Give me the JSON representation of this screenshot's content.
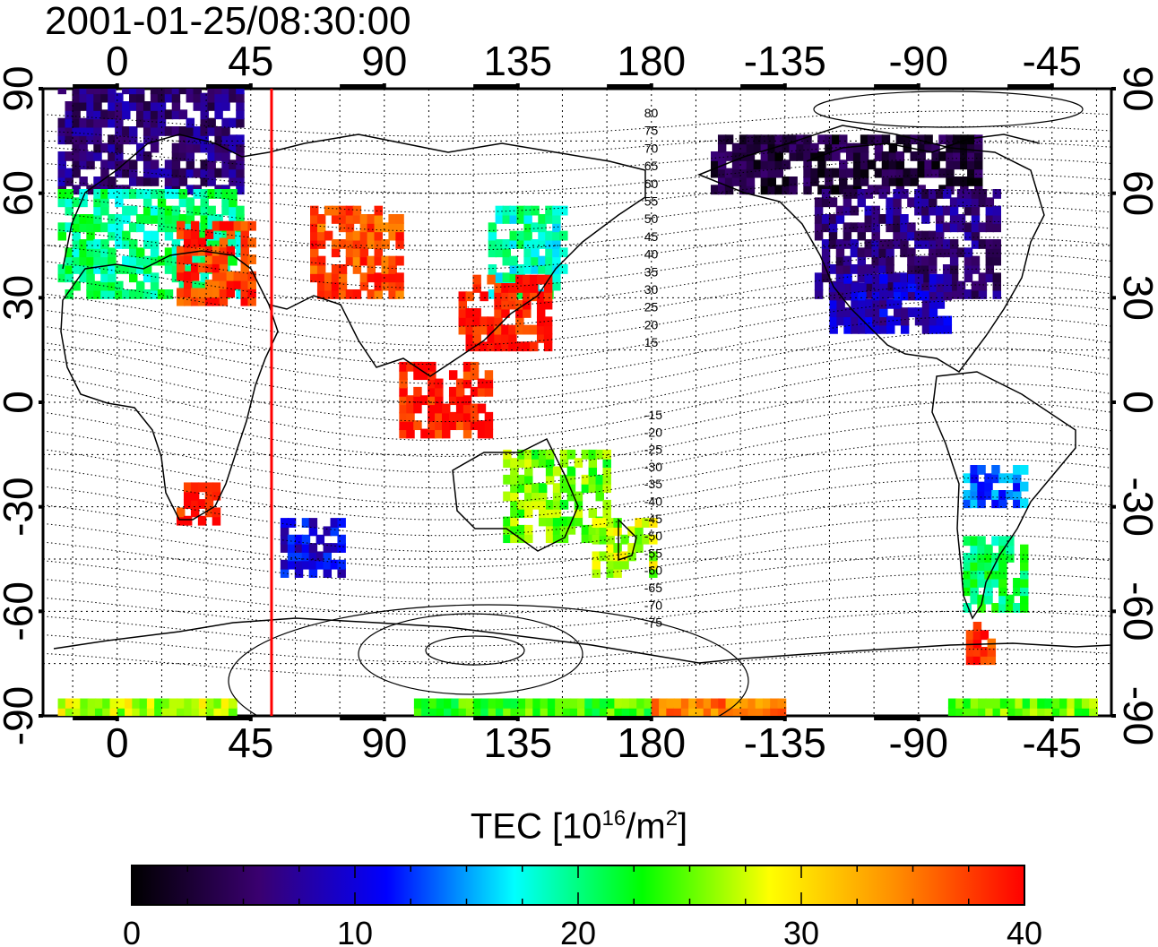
{
  "title": "2001-01-25/08:30:00",
  "top_lon_ticks": [
    "0",
    "45",
    "90",
    "135",
    "180",
    "-135",
    "-90",
    "-45"
  ],
  "bottom_lon_ticks": [
    "0",
    "45",
    "90",
    "135",
    "180",
    "-135",
    "-90",
    "-45"
  ],
  "left_lat_ticks": [
    "90",
    "60",
    "30",
    "0",
    "-30",
    "-60",
    "-90"
  ],
  "right_lat_ticks": [
    "90",
    "60",
    "30",
    "0",
    "-30",
    "-60",
    "-90"
  ],
  "mlat_labels": {
    "north": [
      "80",
      "75",
      "70",
      "65",
      "60",
      "55",
      "50",
      "45",
      "40",
      "35",
      "30",
      "25",
      "20",
      "15"
    ],
    "south": [
      "-15",
      "-20",
      "-25",
      "-30",
      "-35",
      "-40",
      "-45",
      "-50",
      "-55",
      "-60",
      "-65",
      "-70",
      "-75"
    ]
  },
  "colorbar": {
    "title_prefix": "TEC  [10",
    "title_exp1": "16",
    "title_mid": "/m",
    "title_exp2": "2",
    "title_suffix": "]",
    "min": 0,
    "max": 40,
    "tick_labels": [
      "0",
      "10",
      "20",
      "30",
      "40"
    ],
    "colors": [
      "#000000",
      "#3a0070",
      "#0000ff",
      "#00ffff",
      "#00ff00",
      "#ffff00",
      "#ff8c00",
      "#ff0000"
    ]
  },
  "chart_data": {
    "type": "heatmap",
    "title": "2001-01-25/08:30:00",
    "variable": "TEC [10^16/m^2]",
    "x_range": [
      -25,
      335
    ],
    "y_range": [
      -90,
      90
    ],
    "subsolar_meridian_lon": 52,
    "regions": [
      {
        "lon": [
          -20,
          40
        ],
        "lat": [
          60,
          90
        ],
        "tec": 6
      },
      {
        "lon": [
          -20,
          40
        ],
        "lat": [
          30,
          60
        ],
        "tec": 20
      },
      {
        "lon": [
          20,
          45
        ],
        "lat": [
          28,
          50
        ],
        "tec": 38
      },
      {
        "lon": [
          65,
          95
        ],
        "lat": [
          30,
          55
        ],
        "tec": 37
      },
      {
        "lon": [
          125,
          150
        ],
        "lat": [
          30,
          55
        ],
        "tec": 19
      },
      {
        "lon": [
          115,
          145
        ],
        "lat": [
          15,
          35
        ],
        "tec": 39
      },
      {
        "lon": [
          95,
          125
        ],
        "lat": [
          -10,
          10
        ],
        "tec": 39
      },
      {
        "lon": [
          20,
          35
        ],
        "lat": [
          -35,
          -25
        ],
        "tec": 39
      },
      {
        "lon": [
          55,
          75
        ],
        "lat": [
          -50,
          -35
        ],
        "tec": 10
      },
      {
        "lon": [
          130,
          165
        ],
        "lat": [
          -40,
          -15
        ],
        "tec": 25
      },
      {
        "lon": [
          160,
          180
        ],
        "lat": [
          -50,
          -35
        ],
        "tec": 27
      },
      {
        "lon": [
          200,
          290
        ],
        "lat": [
          60,
          75
        ],
        "tec": 3
      },
      {
        "lon": [
          235,
          295
        ],
        "lat": [
          30,
          60
        ],
        "tec": 6
      },
      {
        "lon": [
          240,
          280
        ],
        "lat": [
          20,
          35
        ],
        "tec": 9
      },
      {
        "lon": [
          285,
          305
        ],
        "lat": [
          -30,
          -20
        ],
        "tec": 14
      },
      {
        "lon": [
          285,
          305
        ],
        "lat": [
          -60,
          -40
        ],
        "tec": 21
      },
      {
        "lon": [
          286,
          295
        ],
        "lat": [
          -75,
          -65
        ],
        "tec": 38
      },
      {
        "lon": [
          -20,
          40
        ],
        "lat": [
          -90,
          -85
        ],
        "tec": 27
      },
      {
        "lon": [
          100,
          180
        ],
        "lat": [
          -90,
          -85
        ],
        "tec": 24
      },
      {
        "lon": [
          180,
          225
        ],
        "lat": [
          -90,
          -85
        ],
        "tec": 35
      },
      {
        "lon": [
          280,
          330
        ],
        "lat": [
          -90,
          -85
        ],
        "tec": 25
      }
    ]
  }
}
